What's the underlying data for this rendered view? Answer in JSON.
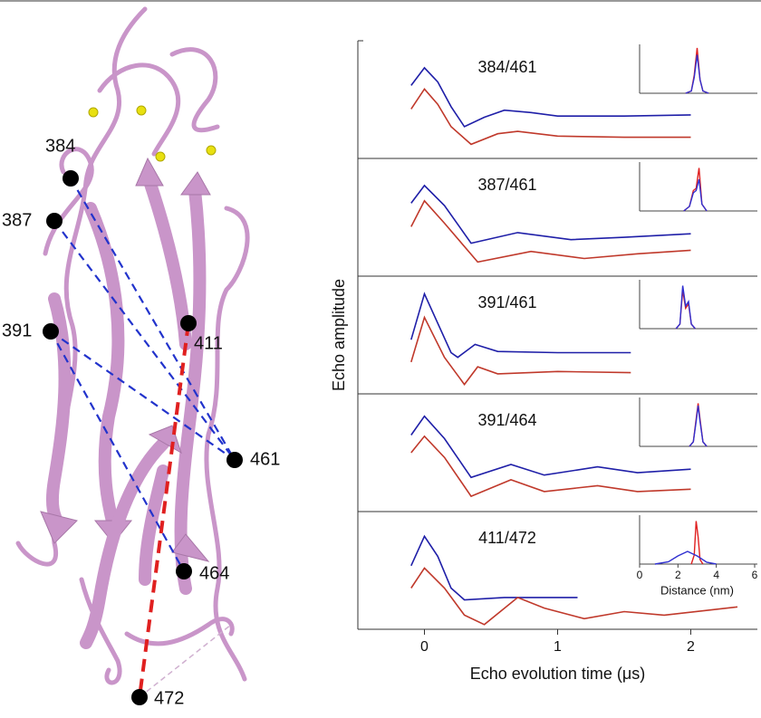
{
  "structure": {
    "labels": [
      "384",
      "387",
      "391",
      "411",
      "461",
      "464",
      "472"
    ]
  },
  "chart_data": {
    "type": "line",
    "xlabel": "Echo evolution time (μs)",
    "ylabel": "Echo amplitude",
    "xlim": [
      -0.5,
      2.5
    ],
    "xticks": [
      0,
      1,
      2
    ],
    "panels": [
      {
        "label": "384/461",
        "ylim": [
          0,
          1
        ],
        "series": [
          {
            "color": "#1f1fa8",
            "x": [
              -0.1,
              0,
              0.1,
              0.2,
              0.3,
              0.45,
              0.6,
              0.8,
              1.0,
              1.5,
              2.0
            ],
            "values": [
              0.62,
              0.77,
              0.65,
              0.44,
              0.27,
              0.35,
              0.41,
              0.39,
              0.36,
              0.36,
              0.37
            ]
          },
          {
            "color": "#c0392b",
            "x": [
              -0.1,
              0,
              0.1,
              0.2,
              0.35,
              0.55,
              0.7,
              1.0,
              1.5,
              2.0
            ],
            "values": [
              0.42,
              0.59,
              0.46,
              0.27,
              0.12,
              0.21,
              0.23,
              0.19,
              0.18,
              0.18
            ]
          }
        ],
        "inset": {
          "xlim": [
            0,
            6
          ],
          "ylim": [
            0,
            1
          ],
          "series": [
            {
              "color": "#e02020",
              "x": [
                2.4,
                2.7,
                2.85,
                3.0,
                3.15,
                3.3,
                3.6
              ],
              "values": [
                0,
                0.05,
                0.4,
                1.0,
                0.3,
                0.05,
                0
              ]
            },
            {
              "color": "#3030d0",
              "x": [
                2.4,
                2.7,
                2.85,
                3.0,
                3.15,
                3.3,
                3.6
              ],
              "values": [
                0,
                0.05,
                0.35,
                0.85,
                0.3,
                0.05,
                0
              ]
            }
          ]
        }
      },
      {
        "label": "387/461",
        "ylim": [
          0,
          1
        ],
        "series": [
          {
            "color": "#1f1fa8",
            "x": [
              -0.1,
              0,
              0.15,
              0.35,
              0.7,
              1.1,
              1.5,
              2.0
            ],
            "values": [
              0.62,
              0.77,
              0.6,
              0.28,
              0.37,
              0.31,
              0.33,
              0.36
            ]
          },
          {
            "color": "#c0392b",
            "x": [
              -0.1,
              0,
              0.15,
              0.4,
              0.8,
              1.2,
              1.6,
              2.0
            ],
            "values": [
              0.42,
              0.64,
              0.45,
              0.12,
              0.21,
              0.15,
              0.19,
              0.22
            ]
          }
        ],
        "inset": {
          "xlim": [
            0,
            6
          ],
          "ylim": [
            0,
            1
          ],
          "series": [
            {
              "color": "#e02020",
              "x": [
                2.3,
                2.6,
                2.8,
                2.95,
                3.1,
                3.25,
                3.5
              ],
              "values": [
                0,
                0.1,
                0.45,
                0.5,
                0.95,
                0.15,
                0
              ]
            },
            {
              "color": "#3030d0",
              "x": [
                2.3,
                2.6,
                2.8,
                2.95,
                3.1,
                3.25,
                3.5
              ],
              "values": [
                0,
                0.1,
                0.4,
                0.45,
                0.7,
                0.15,
                0
              ]
            }
          ]
        }
      },
      {
        "label": "391/461",
        "ylim": [
          0,
          1
        ],
        "series": [
          {
            "color": "#1f1fa8",
            "x": [
              -0.1,
              0,
              0.2,
              0.25,
              0.38,
              0.55,
              1.0,
              1.55
            ],
            "values": [
              0.46,
              0.85,
              0.35,
              0.31,
              0.42,
              0.36,
              0.35,
              0.35
            ]
          },
          {
            "color": "#c0392b",
            "x": [
              -0.1,
              0,
              0.15,
              0.3,
              0.4,
              0.55,
              1.0,
              1.55
            ],
            "values": [
              0.27,
              0.65,
              0.31,
              0.08,
              0.23,
              0.17,
              0.19,
              0.18
            ]
          }
        ],
        "inset": {
          "xlim": [
            0,
            6
          ],
          "ylim": [
            0,
            1
          ],
          "series": [
            {
              "color": "#e02020",
              "x": [
                1.9,
                2.1,
                2.25,
                2.4,
                2.55,
                2.7,
                2.9
              ],
              "values": [
                0,
                0.1,
                0.85,
                0.45,
                0.55,
                0.1,
                0
              ]
            },
            {
              "color": "#3030d0",
              "x": [
                1.9,
                2.1,
                2.25,
                2.4,
                2.55,
                2.7,
                2.9
              ],
              "values": [
                0,
                0.1,
                0.95,
                0.5,
                0.6,
                0.1,
                0
              ]
            }
          ]
        }
      },
      {
        "label": "391/464",
        "ylim": [
          0,
          1
        ],
        "series": [
          {
            "color": "#1f1fa8",
            "x": [
              -0.1,
              0,
              0.15,
              0.35,
              0.65,
              0.9,
              1.3,
              1.6,
              2.0
            ],
            "values": [
              0.65,
              0.81,
              0.62,
              0.29,
              0.4,
              0.31,
              0.38,
              0.33,
              0.36
            ]
          },
          {
            "color": "#c0392b",
            "x": [
              -0.1,
              0,
              0.15,
              0.35,
              0.65,
              0.9,
              1.3,
              1.6,
              2.0
            ],
            "values": [
              0.5,
              0.64,
              0.46,
              0.13,
              0.27,
              0.17,
              0.22,
              0.17,
              0.19
            ]
          }
        ],
        "inset": {
          "xlim": [
            0,
            6
          ],
          "ylim": [
            0,
            1
          ],
          "series": [
            {
              "color": "#e02020",
              "x": [
                2.6,
                2.8,
                2.95,
                3.05,
                3.15,
                3.3,
                3.5
              ],
              "values": [
                0,
                0.1,
                0.6,
                0.95,
                0.6,
                0.1,
                0
              ]
            },
            {
              "color": "#3030d0",
              "x": [
                2.6,
                2.8,
                2.95,
                3.05,
                3.15,
                3.3,
                3.5
              ],
              "values": [
                0,
                0.1,
                0.55,
                0.9,
                0.55,
                0.1,
                0
              ]
            }
          ]
        }
      },
      {
        "label": "411/472",
        "ylim": [
          0,
          1
        ],
        "series": [
          {
            "color": "#1f1fa8",
            "x": [
              -0.1,
              0,
              0.1,
              0.2,
              0.3,
              0.6,
              1.15
            ],
            "values": [
              0.54,
              0.79,
              0.62,
              0.35,
              0.25,
              0.27,
              0.27
            ]
          },
          {
            "color": "#c0392b",
            "x": [
              -0.1,
              0,
              0.15,
              0.3,
              0.45,
              0.7,
              0.9,
              1.2,
              1.5,
              1.8,
              2.35
            ],
            "values": [
              0.35,
              0.52,
              0.35,
              0.12,
              0.04,
              0.27,
              0.18,
              0.09,
              0.15,
              0.12,
              0.19
            ]
          }
        ],
        "inset": {
          "xlim": [
            0,
            6
          ],
          "ylim": [
            0,
            1
          ],
          "xlabel": "Distance (nm)",
          "xticks": [
            0,
            2,
            4,
            6
          ],
          "series": [
            {
              "color": "#e02020",
              "x": [
                2.7,
                2.85,
                2.95,
                3.05,
                3.15,
                3.3
              ],
              "values": [
                0,
                0.2,
                0.95,
                0.6,
                0.1,
                0
              ]
            },
            {
              "color": "#3030d0",
              "x": [
                0.8,
                1.5,
                2.0,
                2.5,
                3.0,
                3.5,
                4.0
              ],
              "values": [
                0,
                0.05,
                0.18,
                0.28,
                0.18,
                0.04,
                0
              ]
            }
          ]
        }
      }
    ]
  }
}
